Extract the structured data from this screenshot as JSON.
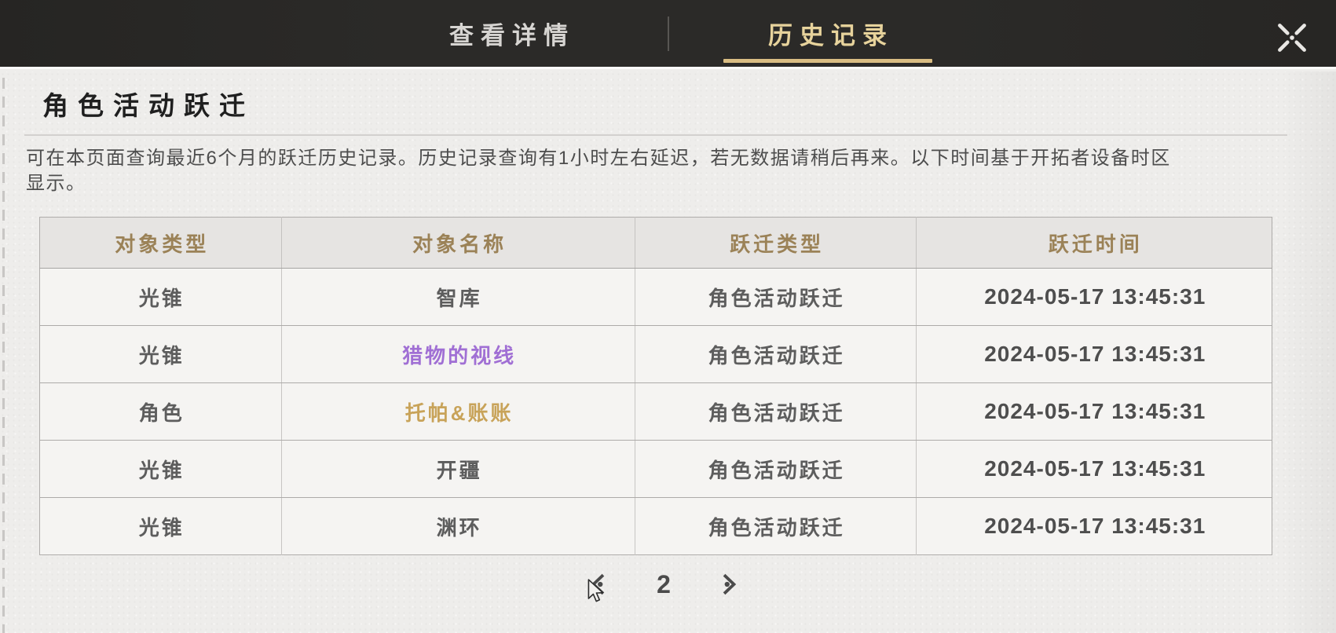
{
  "header": {
    "tabs": [
      {
        "label": "查看详情",
        "active": false
      },
      {
        "label": "历史记录",
        "active": true
      }
    ],
    "close_icon": "close-x-with-center-dot"
  },
  "page": {
    "title": "角色活动跃迁",
    "description_line1": "可在本页面查询最近6个月的跃迁历史记录。历史记录查询有1小时左右延迟，若无数据请稍后再来。以下时间基于开拓者设备时区",
    "description_line2": "显示。"
  },
  "table": {
    "columns": [
      "对象类型",
      "对象名称",
      "跃迁类型",
      "跃迁时间"
    ],
    "rows": [
      {
        "type": "光锥",
        "name": "智库",
        "name_color": "default",
        "warp_type": "角色活动跃迁",
        "time": "2024-05-17 13:45:31"
      },
      {
        "type": "光锥",
        "name": "猎物的视线",
        "name_color": "purple",
        "warp_type": "角色活动跃迁",
        "time": "2024-05-17 13:45:31"
      },
      {
        "type": "角色",
        "name": "托帕&账账",
        "name_color": "gold",
        "warp_type": "角色活动跃迁",
        "time": "2024-05-17 13:45:31"
      },
      {
        "type": "光锥",
        "name": "开疆",
        "name_color": "default",
        "warp_type": "角色活动跃迁",
        "time": "2024-05-17 13:45:31"
      },
      {
        "type": "光锥",
        "name": "渊环",
        "name_color": "default",
        "warp_type": "角色活动跃迁",
        "time": "2024-05-17 13:45:31"
      }
    ]
  },
  "pagination": {
    "current_page": "2",
    "prev_icon": "chevron-left-with-dot",
    "next_icon": "chevron-right-with-dot"
  },
  "colors": {
    "topbar_bg": "#2b2a28",
    "tab_inactive_text": "#d7d5d2",
    "tab_active_text": "#e7d39c",
    "tab_underline": "#d9bd83",
    "content_bg": "#eeedeb",
    "table_header_bg": "#e6e4e2",
    "table_row_bg": "#f5f4f2",
    "table_header_text": "#9b8257",
    "body_text": "#5d5d5d",
    "time_text": "#4e4e4e",
    "item_purple": "#a06fd4",
    "item_gold": "#c8a359"
  }
}
